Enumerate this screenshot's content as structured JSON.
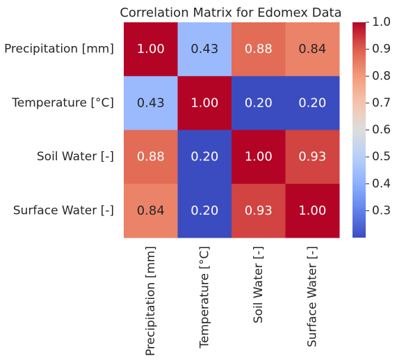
{
  "chart_data": {
    "type": "heatmap",
    "title": "Correlation Matrix for Edomex Data",
    "xlabel": "",
    "ylabel": "",
    "rows": [
      "Precipitation [mm]",
      "Temperature [°C]",
      "Soil Water [-]",
      "Surface Water [-]"
    ],
    "columns": [
      "Precipitation [mm]",
      "Temperature [°C]",
      "Soil Water [-]",
      "Surface Water [-]"
    ],
    "values": [
      [
        1.0,
        0.43,
        0.88,
        0.84
      ],
      [
        0.43,
        1.0,
        0.2,
        0.2
      ],
      [
        0.88,
        0.2,
        1.0,
        0.93
      ],
      [
        0.84,
        0.2,
        0.93,
        1.0
      ]
    ],
    "annotation_labels": [
      [
        "1.00",
        "0.43",
        "0.88",
        "0.84"
      ],
      [
        "0.43",
        "1.00",
        "0.20",
        "0.20"
      ],
      [
        "0.88",
        "0.20",
        "1.00",
        "0.93"
      ],
      [
        "0.84",
        "0.20",
        "0.93",
        "1.00"
      ]
    ],
    "colormap": "coolwarm",
    "color_range": [
      0.2,
      1.0
    ],
    "colorbar": {
      "placement": "right",
      "tick_values": [
        0.3,
        0.4,
        0.5,
        0.6,
        0.7,
        0.8,
        0.9,
        1.0
      ],
      "tick_labels": [
        "0.3",
        "0.4",
        "0.5",
        "0.6",
        "0.7",
        "0.8",
        "0.9",
        "1.0"
      ]
    },
    "grid": false
  }
}
